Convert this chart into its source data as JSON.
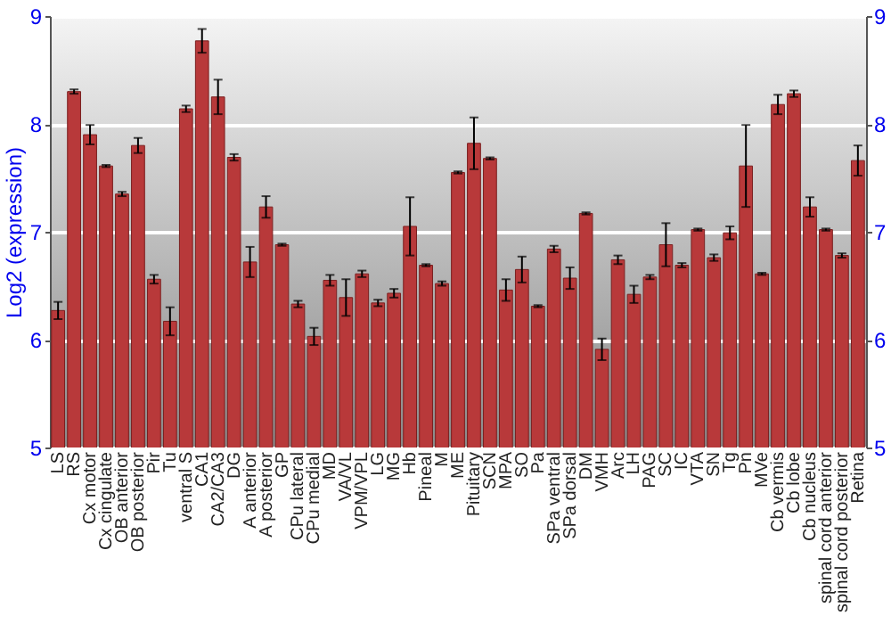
{
  "chart_data": {
    "type": "bar",
    "ylabel": "Log2 (expression)",
    "categories": [
      "LS",
      "RS",
      "Cx motor",
      "Cx cingulate",
      "OB anterior",
      "OB posterior",
      "Pir",
      "Tu",
      "ventral S",
      "CA1",
      "CA2/CA3",
      "DG",
      "A anterior",
      "A posterior",
      "GP",
      "CPu lateral",
      "CPu medial",
      "MD",
      "VA/VL",
      "VPM/VPL",
      "LG",
      "MG",
      "Hb",
      "Pineal",
      "M",
      "ME",
      "Pituitary",
      "SCN",
      "MPA",
      "SO",
      "Pa",
      "SPa ventral",
      "SPa dorsal",
      "DM",
      "VMH",
      "Arc",
      "LH",
      "PAG",
      "SC",
      "IC",
      "VTA",
      "SN",
      "Tg",
      "Pn",
      "MVe",
      "Cb vermis",
      "Cb lobe",
      "Cb nucleus",
      "spinal cord anterior",
      "spinal cord posterior",
      "Retina"
    ],
    "series": [
      {
        "color": "#b8393a",
        "values": [
          6.27,
          8.3,
          7.9,
          7.61,
          7.35,
          7.8,
          6.56,
          6.17,
          8.14,
          8.77,
          8.25,
          7.69,
          6.72,
          7.23,
          6.88,
          6.33,
          6.03,
          6.55,
          6.39,
          6.61,
          6.34,
          6.43,
          7.05,
          6.69,
          6.52,
          7.55,
          7.82,
          7.68,
          6.46,
          6.65,
          6.31,
          6.84,
          6.57,
          7.17,
          5.91,
          6.74,
          6.42,
          6.58,
          6.88,
          6.69,
          7.02,
          6.76,
          6.99,
          7.61,
          6.61,
          8.18,
          8.28,
          7.23,
          7.02,
          6.78,
          7.66
        ],
        "errors": [
          0.08,
          0.02,
          0.09,
          0.01,
          0.02,
          0.07,
          0.04,
          0.13,
          0.03,
          0.11,
          0.16,
          0.03,
          0.14,
          0.1,
          0.01,
          0.03,
          0.08,
          0.05,
          0.17,
          0.03,
          0.03,
          0.04,
          0.27,
          0.01,
          0.02,
          0.01,
          0.24,
          0.01,
          0.1,
          0.12,
          0.01,
          0.03,
          0.1,
          0.01,
          0.1,
          0.04,
          0.08,
          0.02,
          0.2,
          0.02,
          0.01,
          0.03,
          0.06,
          0.38,
          0.01,
          0.09,
          0.03,
          0.09,
          0.01,
          0.02,
          0.14
        ]
      }
    ],
    "ylim": [
      5,
      9
    ],
    "yticks": [
      5,
      6,
      7,
      8,
      9
    ],
    "y2lim": [
      5,
      9
    ],
    "y2ticks": [
      5,
      6,
      7,
      8,
      9
    ],
    "grid": "y"
  }
}
